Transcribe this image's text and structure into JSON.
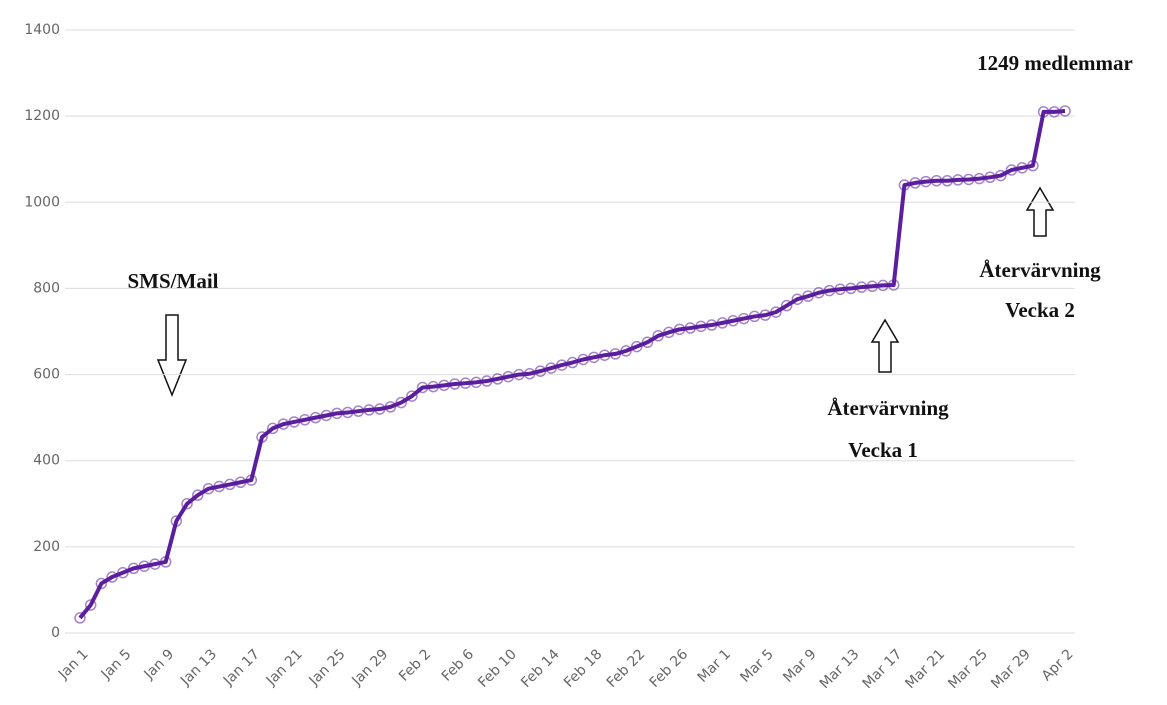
{
  "chart_data": {
    "type": "line",
    "categories": [
      "Jan 1",
      null,
      null,
      null,
      "Jan 5",
      null,
      null,
      null,
      "Jan 9",
      null,
      null,
      null,
      "Jan 13",
      null,
      null,
      null,
      "Jan 17",
      null,
      null,
      null,
      "Jan 21",
      null,
      null,
      null,
      "Jan 25",
      null,
      null,
      null,
      "Jan 29",
      null,
      null,
      null,
      "Feb 2",
      null,
      null,
      null,
      "Feb 6",
      null,
      null,
      null,
      "Feb 10",
      null,
      null,
      null,
      "Feb 14",
      null,
      null,
      null,
      "Feb 18",
      null,
      null,
      null,
      "Feb 22",
      null,
      null,
      null,
      "Feb 26",
      null,
      null,
      null,
      "Mar 1",
      null,
      null,
      null,
      "Mar 5",
      null,
      null,
      null,
      "Mar 9",
      null,
      null,
      null,
      "Mar 13",
      null,
      null,
      null,
      "Mar 17",
      null,
      null,
      null,
      "Mar 21",
      null,
      null,
      null,
      "Mar 25",
      null,
      null,
      null,
      "Mar 29",
      null,
      null,
      null,
      "Apr 2"
    ],
    "series": [
      {
        "color": "#5a1e9e",
        "values": [
          35,
          65,
          115,
          130,
          140,
          150,
          155,
          160,
          165,
          260,
          300,
          320,
          335,
          340,
          345,
          350,
          355,
          455,
          475,
          485,
          490,
          495,
          500,
          505,
          510,
          512,
          515,
          518,
          520,
          525,
          535,
          550,
          570,
          572,
          575,
          578,
          580,
          582,
          585,
          590,
          595,
          600,
          602,
          608,
          615,
          622,
          628,
          635,
          640,
          645,
          648,
          655,
          665,
          675,
          690,
          698,
          705,
          708,
          712,
          715,
          720,
          725,
          730,
          735,
          738,
          745,
          760,
          775,
          782,
          790,
          795,
          798,
          800,
          803,
          805,
          807,
          808,
          1040,
          1045,
          1048,
          1050,
          1050,
          1052,
          1053,
          1055,
          1058,
          1062,
          1075,
          1080,
          1085,
          1210,
          1210,
          1212
        ]
      }
    ],
    "ylim": [
      0,
      1400
    ],
    "yticks": [
      0,
      200,
      400,
      600,
      800,
      1000,
      1200,
      1400
    ],
    "grid": true,
    "annotations": [
      "1249 medlemmar",
      "SMS/Mail",
      "Återvärvning",
      "Vecka 1",
      "Återvärvning",
      "Vecka 2"
    ]
  }
}
